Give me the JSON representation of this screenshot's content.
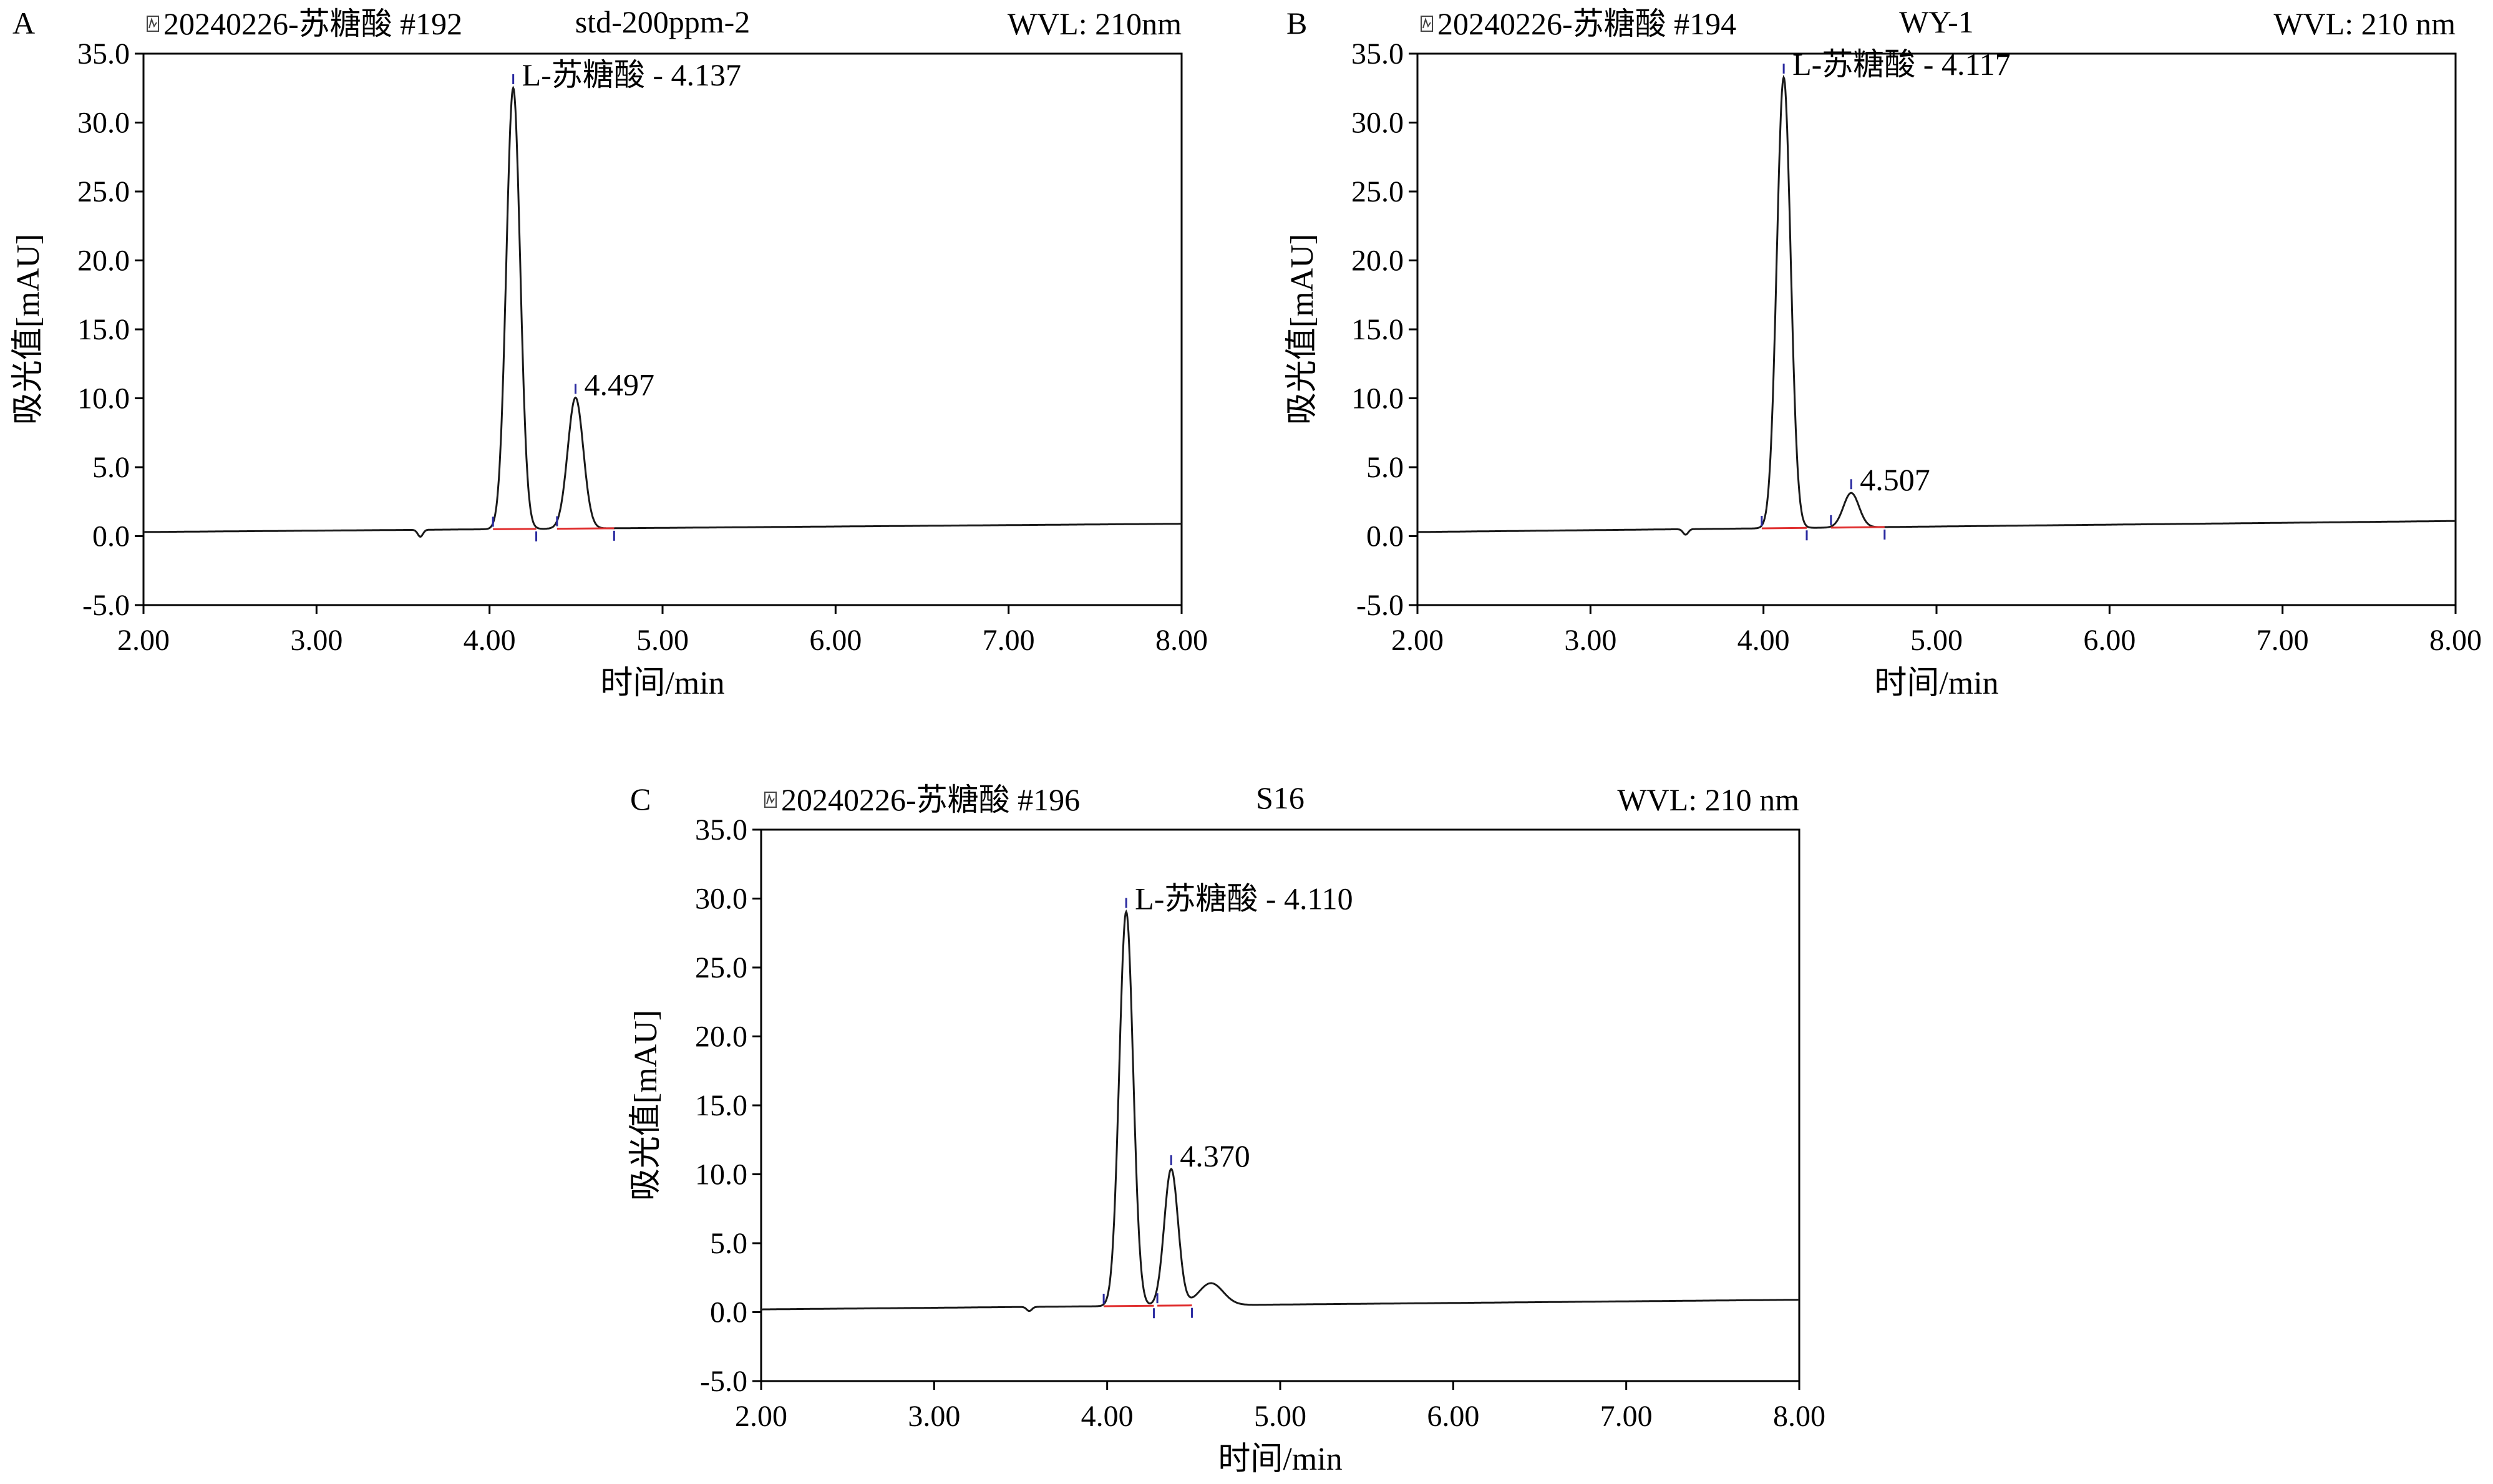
{
  "chart_data": [
    {
      "panel_label": "A",
      "type": "line",
      "header": {
        "sample": "20240226-苏糖酸 #192",
        "name": "std-200ppm-2",
        "wvl": "WVL: 210nm"
      },
      "xlabel": "时间/min",
      "ylabel": "吸光值[mAU]",
      "xlim": [
        2.0,
        8.0
      ],
      "ylim": [
        -5.0,
        35.0
      ],
      "xticks": [
        "2.00",
        "3.00",
        "4.00",
        "5.00",
        "6.00",
        "7.00",
        "8.00"
      ],
      "yticks": [
        "-5.0",
        "0.0",
        "5.0",
        "10.0",
        "15.0",
        "20.0",
        "25.0",
        "30.0",
        "35.0"
      ],
      "baseline": {
        "start": 0.3,
        "end": 0.9
      },
      "dip": {
        "x": 3.6,
        "depth": 0.5
      },
      "peaks": [
        {
          "rt": 4.137,
          "height": 32.0,
          "width": 0.04,
          "label": "L-苏糖酸 - 4.137",
          "start": 4.02,
          "end": 4.27
        },
        {
          "rt": 4.497,
          "height": 9.5,
          "width": 0.045,
          "label": "4.497",
          "start": 4.39,
          "end": 4.72
        }
      ]
    },
    {
      "panel_label": "B",
      "type": "line",
      "header": {
        "sample": "20240226-苏糖酸 #194",
        "name": "WY-1",
        "wvl": "WVL: 210 nm"
      },
      "xlabel": "时间/min",
      "ylabel": "吸光值[mAU]",
      "xlim": [
        2.0,
        8.0
      ],
      "ylim": [
        -5.0,
        35.0
      ],
      "xticks": [
        "2.00",
        "3.00",
        "4.00",
        "5.00",
        "6.00",
        "7.00",
        "8.00"
      ],
      "yticks": [
        "-5.0",
        "0.0",
        "5.0",
        "10.0",
        "15.0",
        "20.0",
        "25.0",
        "30.0",
        "35.0"
      ],
      "baseline": {
        "start": 0.3,
        "end": 1.1
      },
      "dip": {
        "x": 3.55,
        "depth": 0.4
      },
      "peaks": [
        {
          "rt": 4.117,
          "height": 32.7,
          "width": 0.04,
          "label": "L-苏糖酸 - 4.117",
          "start": 3.99,
          "end": 4.25
        },
        {
          "rt": 4.507,
          "height": 2.5,
          "width": 0.045,
          "label": "4.507",
          "start": 4.39,
          "end": 4.7
        }
      ]
    },
    {
      "panel_label": "C",
      "type": "line",
      "header": {
        "sample": "20240226-苏糖酸 #196",
        "name": "S16",
        "wvl": "WVL: 210 nm"
      },
      "xlabel": "时间/min",
      "ylabel": "吸光值[mAU]",
      "xlim": [
        2.0,
        8.0
      ],
      "ylim": [
        -5.0,
        35.0
      ],
      "xticks": [
        "2.00",
        "3.00",
        "4.00",
        "5.00",
        "6.00",
        "7.00",
        "8.00"
      ],
      "yticks": [
        "-5.0",
        "0.0",
        "5.0",
        "10.0",
        "15.0",
        "20.0",
        "25.0",
        "30.0",
        "35.0"
      ],
      "baseline": {
        "start": 0.2,
        "end": 0.9
      },
      "dip": {
        "x": 3.55,
        "depth": 0.3
      },
      "shoulder": {
        "x": 4.6,
        "height": 1.6,
        "width": 0.07
      },
      "peaks": [
        {
          "rt": 4.11,
          "height": 28.6,
          "width": 0.04,
          "label": "L-苏糖酸 - 4.110",
          "start": 3.98,
          "end": 4.27
        },
        {
          "rt": 4.37,
          "height": 9.9,
          "width": 0.04,
          "label": "4.370",
          "start": 4.29,
          "end": 4.49
        }
      ]
    }
  ],
  "colors": {
    "trace": "#1a1a1a",
    "baseline": "#e03030",
    "marker": "#2a2aa0",
    "axis": "#000000"
  },
  "icons": {
    "header_icon": "chromatogram-icon"
  }
}
